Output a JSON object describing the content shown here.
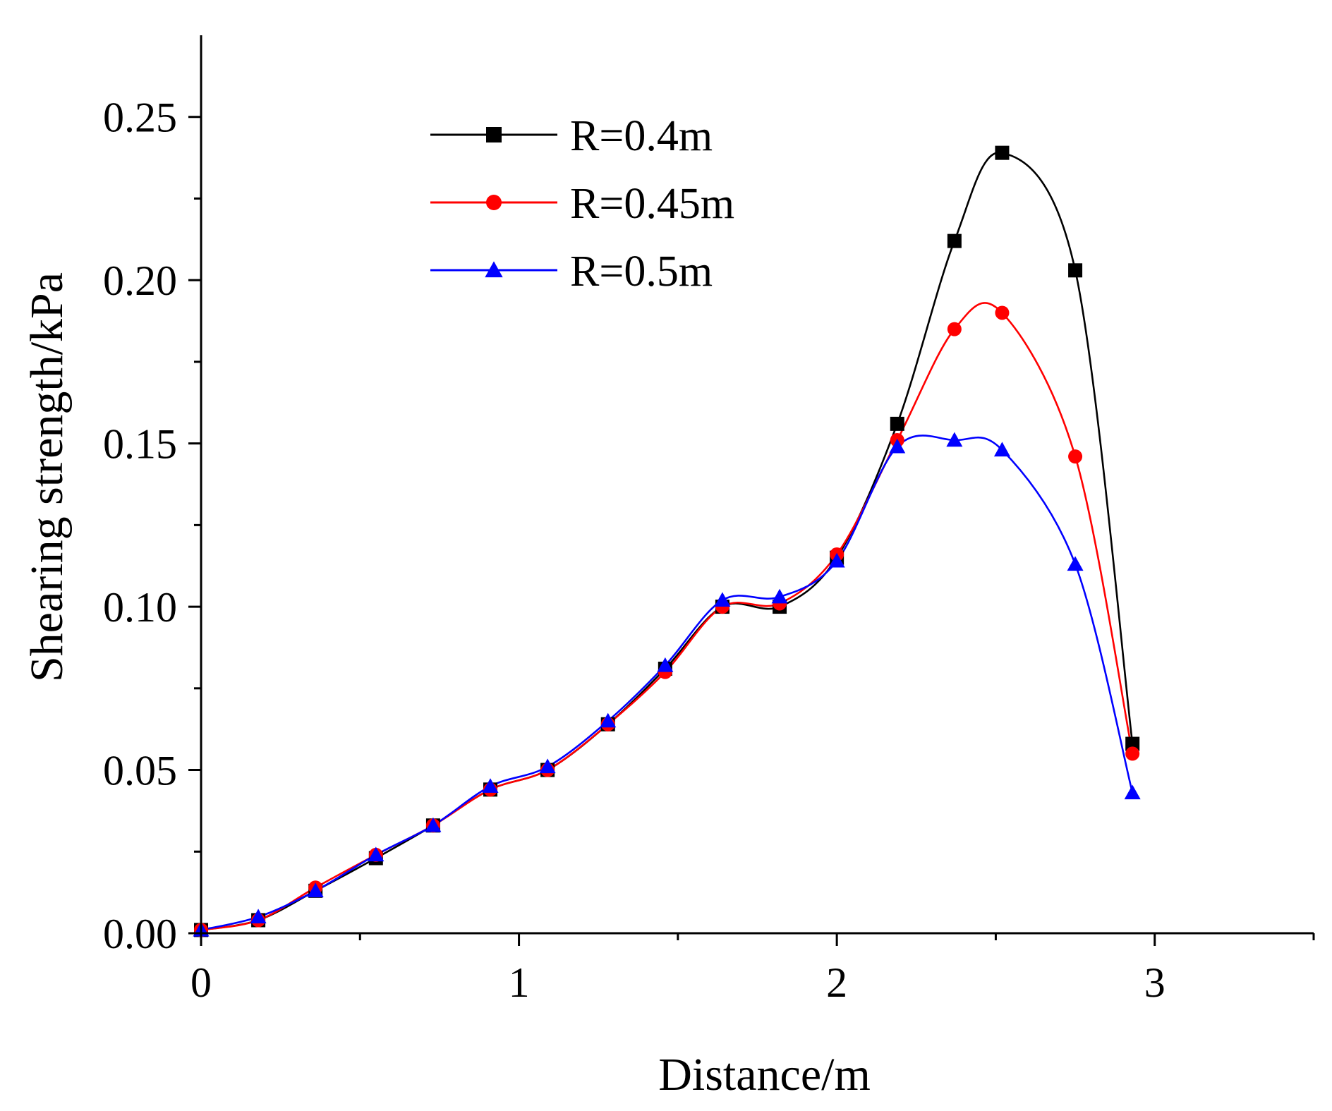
{
  "chart_data": {
    "type": "line",
    "xlabel": "Distance/m",
    "ylabel": "Shearing strength/kPa",
    "xlim": [
      0,
      3.5
    ],
    "ylim": [
      0,
      0.275
    ],
    "x_ticks": [
      {
        "value": 0,
        "label": "0"
      },
      {
        "value": 1,
        "label": "1"
      },
      {
        "value": 2,
        "label": "2"
      },
      {
        "value": 3,
        "label": "3"
      }
    ],
    "x_minor_ticks": [
      0.5,
      1.5,
      2.5,
      3.5
    ],
    "y_ticks": [
      {
        "value": 0.0,
        "label": "0.00"
      },
      {
        "value": 0.05,
        "label": "0.05"
      },
      {
        "value": 0.1,
        "label": "0.10"
      },
      {
        "value": 0.15,
        "label": "0.15"
      },
      {
        "value": 0.2,
        "label": "0.20"
      },
      {
        "value": 0.25,
        "label": "0.25"
      }
    ],
    "y_minor_ticks": [
      0.025,
      0.075,
      0.125,
      0.175,
      0.225
    ],
    "legend_position": "top-center",
    "series": [
      {
        "name": "R=0.4m",
        "color": "#000000",
        "marker": "square",
        "x": [
          0,
          0.18,
          0.36,
          0.55,
          0.73,
          0.91,
          1.09,
          1.28,
          1.46,
          1.64,
          1.82,
          2.0,
          2.19,
          2.37,
          2.52,
          2.75,
          2.93
        ],
        "y": [
          0.001,
          0.004,
          0.013,
          0.023,
          0.033,
          0.044,
          0.05,
          0.064,
          0.081,
          0.1,
          0.1,
          0.115,
          0.156,
          0.212,
          0.239,
          0.203,
          0.058
        ]
      },
      {
        "name": "R=0.45m",
        "color": "#ff0000",
        "marker": "circle",
        "x": [
          0,
          0.18,
          0.36,
          0.55,
          0.73,
          0.91,
          1.09,
          1.28,
          1.46,
          1.64,
          1.82,
          2.0,
          2.19,
          2.37,
          2.52,
          2.75,
          2.93
        ],
        "y": [
          0.001,
          0.004,
          0.014,
          0.024,
          0.033,
          0.044,
          0.05,
          0.064,
          0.08,
          0.1,
          0.101,
          0.116,
          0.151,
          0.185,
          0.19,
          0.146,
          0.055
        ]
      },
      {
        "name": "R=0.5m",
        "color": "#0000ff",
        "marker": "triangle",
        "x": [
          0,
          0.18,
          0.36,
          0.55,
          0.73,
          0.91,
          1.09,
          1.28,
          1.46,
          1.64,
          1.82,
          2.0,
          2.19,
          2.37,
          2.52,
          2.75,
          2.93
        ],
        "y": [
          0.001,
          0.005,
          0.013,
          0.024,
          0.033,
          0.045,
          0.051,
          0.065,
          0.082,
          0.102,
          0.103,
          0.114,
          0.149,
          0.151,
          0.148,
          0.113,
          0.043
        ]
      }
    ]
  }
}
